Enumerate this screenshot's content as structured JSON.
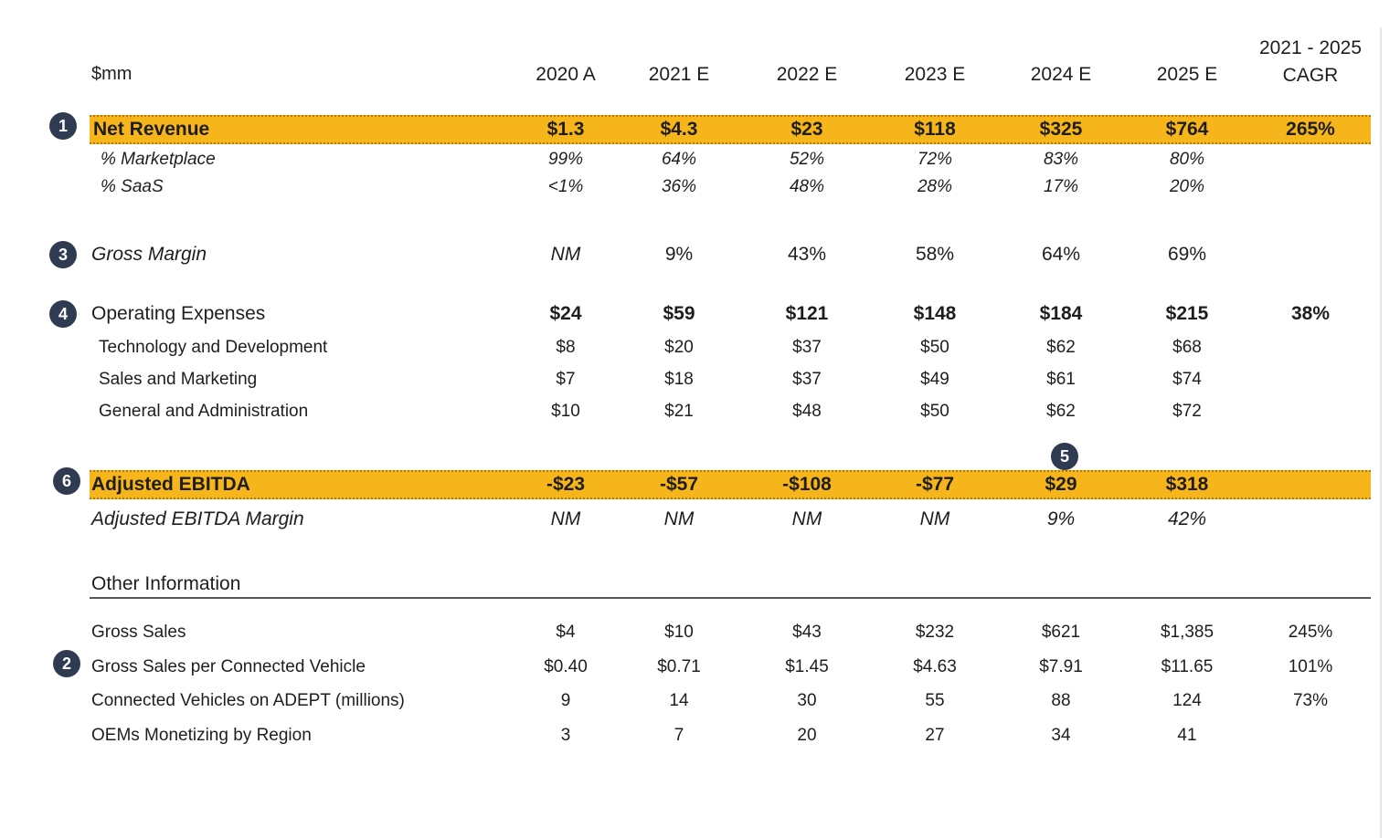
{
  "header": {
    "unit_label": "$mm",
    "years": [
      "2020 A",
      "2021 E",
      "2022 E",
      "2023 E",
      "2024 E",
      "2025 E"
    ],
    "cagr_line1": "2021 - 2025",
    "cagr_line2": "CAGR"
  },
  "markers": {
    "net_revenue": "1",
    "gross_sales_per_vehicle": "2",
    "gross_margin": "3",
    "operating_expenses": "4",
    "breakeven_2024": "5",
    "adjusted_ebitda": "6"
  },
  "colors": {
    "highlight": "#f7b51c",
    "marker": "#2e3b50"
  },
  "net_revenue": {
    "label": "Net Revenue",
    "values": [
      "$1.3",
      "$4.3",
      "$23",
      "$118",
      "$325",
      "$764"
    ],
    "cagr": "265%"
  },
  "pct_marketplace": {
    "label": "% Marketplace",
    "values": [
      "99%",
      "64%",
      "52%",
      "72%",
      "83%",
      "80%"
    ]
  },
  "pct_saas": {
    "label": "% SaaS",
    "values": [
      "<1%",
      "36%",
      "48%",
      "28%",
      "17%",
      "20%"
    ]
  },
  "gross_margin": {
    "label": "Gross Margin",
    "values": [
      "NM",
      "9%",
      "43%",
      "58%",
      "64%",
      "69%"
    ]
  },
  "operating_expenses": {
    "label": "Operating Expenses",
    "values": [
      "$24",
      "$59",
      "$121",
      "$148",
      "$184",
      "$215"
    ],
    "cagr": "38%"
  },
  "tech_dev": {
    "label": "Technology and Development",
    "values": [
      "$8",
      "$20",
      "$37",
      "$50",
      "$62",
      "$68"
    ]
  },
  "sales_marketing": {
    "label": "Sales and Marketing",
    "values": [
      "$7",
      "$18",
      "$37",
      "$49",
      "$61",
      "$74"
    ]
  },
  "general_admin": {
    "label": "General and Administration",
    "values": [
      "$10",
      "$21",
      "$48",
      "$50",
      "$62",
      "$72"
    ]
  },
  "adjusted_ebitda": {
    "label": "Adjusted EBITDA",
    "values": [
      "-$23",
      "-$57",
      "-$108",
      "-$77",
      "$29",
      "$318"
    ]
  },
  "adjusted_ebitda_margin": {
    "label": "Adjusted EBITDA Margin",
    "values": [
      "NM",
      "NM",
      "NM",
      "NM",
      "9%",
      "42%"
    ]
  },
  "other_information": {
    "title": "Other Information"
  },
  "gross_sales": {
    "label": "Gross Sales",
    "values": [
      "$4",
      "$10",
      "$43",
      "$232",
      "$621",
      "$1,385"
    ],
    "cagr": "245%"
  },
  "gross_sales_per_vehicle": {
    "label": "Gross Sales per Connected Vehicle",
    "values": [
      "$0.40",
      "$0.71",
      "$1.45",
      "$4.63",
      "$7.91",
      "$11.65"
    ],
    "cagr": "101%"
  },
  "connected_vehicles": {
    "label": "Connected Vehicles on ADEPT (millions)",
    "values": [
      "9",
      "14",
      "30",
      "55",
      "88",
      "124"
    ],
    "cagr": "73%"
  },
  "oems_monetizing": {
    "label": "OEMs Monetizing by Region",
    "values": [
      "3",
      "7",
      "20",
      "27",
      "34",
      "41"
    ]
  }
}
